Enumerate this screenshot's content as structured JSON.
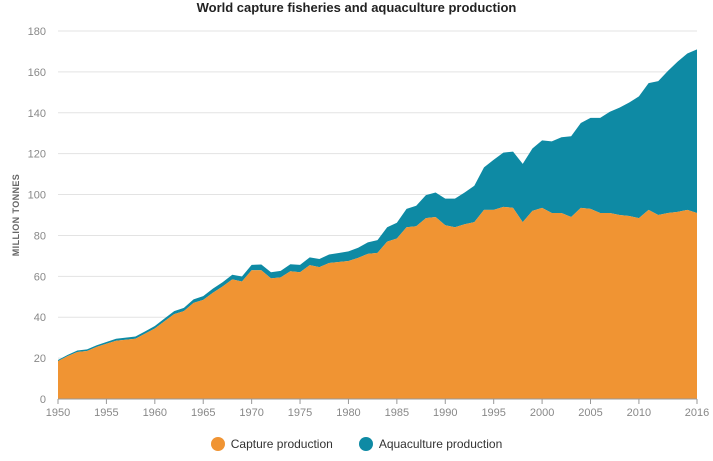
{
  "chart_data": {
    "type": "area",
    "stacked": true,
    "title": "World capture fisheries and aquaculture production",
    "ylabel": "MILLION TONNES",
    "xlabel": "",
    "xlim": [
      1950,
      2016
    ],
    "ylim": [
      0,
      180
    ],
    "x_ticks": [
      1950,
      1955,
      1960,
      1965,
      1970,
      1975,
      1980,
      1985,
      1990,
      1995,
      2000,
      2005,
      2010,
      2016
    ],
    "y_ticks": [
      0,
      20,
      40,
      60,
      80,
      100,
      120,
      140,
      160,
      180
    ],
    "grid": true,
    "x": [
      1950,
      1951,
      1952,
      1953,
      1954,
      1955,
      1956,
      1957,
      1958,
      1959,
      1960,
      1961,
      1962,
      1963,
      1964,
      1965,
      1966,
      1967,
      1968,
      1969,
      1970,
      1971,
      1972,
      1973,
      1974,
      1975,
      1976,
      1977,
      1978,
      1979,
      1980,
      1981,
      1982,
      1983,
      1984,
      1985,
      1986,
      1987,
      1988,
      1989,
      1990,
      1991,
      1992,
      1993,
      1994,
      1995,
      1996,
      1997,
      1998,
      1999,
      2000,
      2001,
      2002,
      2003,
      2004,
      2005,
      2006,
      2007,
      2008,
      2009,
      2010,
      2011,
      2012,
      2013,
      2014,
      2015,
      2016
    ],
    "series": [
      {
        "name": "Capture production",
        "color": "#f09433",
        "values": [
          18.5,
          21,
          23,
          23.5,
          25.5,
          27,
          28.5,
          29,
          29.5,
          32,
          34.5,
          38,
          41.5,
          43,
          47,
          48.5,
          52,
          55,
          58.5,
          57.5,
          63,
          63,
          59,
          59.5,
          62.5,
          62,
          65.5,
          64.5,
          66.5,
          67,
          67.5,
          69,
          71,
          71.5,
          77,
          78.5,
          84,
          84.5,
          88.5,
          89,
          85,
          84,
          85.5,
          86.5,
          92.5,
          92.5,
          94,
          93.5,
          86.5,
          92,
          93.5,
          91,
          91,
          89,
          93.5,
          93,
          91,
          91,
          90,
          89.5,
          88.5,
          92.5,
          90,
          91,
          91.5,
          92.5,
          91
        ]
      },
      {
        "name": "Aquaculture production",
        "color": "#0e8aa4",
        "values": [
          0.6,
          0.6,
          0.7,
          0.8,
          0.8,
          0.9,
          1.0,
          1.0,
          1.1,
          1.1,
          1.2,
          1.4,
          1.5,
          1.6,
          1.7,
          1.8,
          2.0,
          2.1,
          2.3,
          2.4,
          2.6,
          2.8,
          3.0,
          3.2,
          3.4,
          3.6,
          3.8,
          4.0,
          4.2,
          4.4,
          4.7,
          5.0,
          5.6,
          6.2,
          7.0,
          7.7,
          9.0,
          10.0,
          11.2,
          12.0,
          13.0,
          14.0,
          15.5,
          17.8,
          20.8,
          24.5,
          26.5,
          27.5,
          28.5,
          30.5,
          33,
          35,
          37,
          39.5,
          41.5,
          44.5,
          46.5,
          49.5,
          52.5,
          55.5,
          59.5,
          62,
          65.5,
          69.5,
          73.5,
          76.5,
          80
        ]
      }
    ]
  },
  "legend": [
    {
      "label": "Capture production",
      "color": "#f09433"
    },
    {
      "label": "Aquaculture production",
      "color": "#0e8aa4"
    }
  ]
}
